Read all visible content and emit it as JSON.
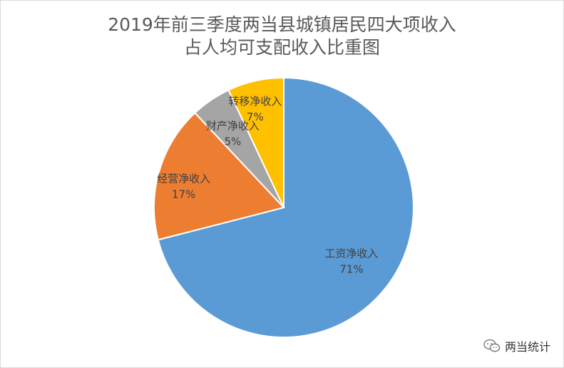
{
  "chart_data": {
    "type": "pie",
    "title_lines": [
      "2019年前三季度两当县城镇居民四大项收入",
      "占人均可支配收入比重图"
    ],
    "categories": [
      "工资净收入",
      "经营净收入",
      "财产净收入",
      "转移净收入"
    ],
    "values": [
      71,
      17,
      5,
      7
    ],
    "labels": [
      "71%",
      "17%",
      "5%",
      "7%"
    ],
    "colors": [
      "#5b9bd5",
      "#ed7d31",
      "#a5a5a5",
      "#ffc000"
    ],
    "legend": "none",
    "start_angle": "top, clockwise"
  },
  "watermark": {
    "text": "两当统计",
    "icon": "wechat-icon"
  }
}
